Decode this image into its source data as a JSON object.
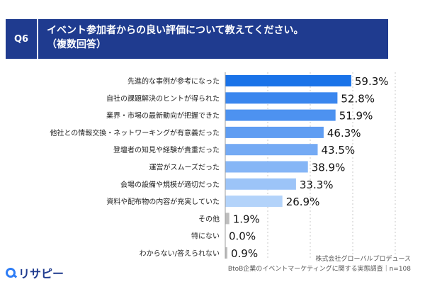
{
  "header": {
    "question_no": "Q6",
    "line1": "イベント参加者からの良い評価について教えてください。",
    "line2": "（複数回答）"
  },
  "chart_data": {
    "type": "bar",
    "orientation": "horizontal",
    "categories": [
      "先進的な事例が参考になった",
      "自社の課題解決のヒントが得られた",
      "業界・市場の最新動向が把握できた",
      "他社との情報交換・ネットワーキングが有意義だった",
      "登壇者の知見や経験が貴重だった",
      "運営がスムーズだった",
      "会場の設備や規模が適切だった",
      "資料や配布物の内容が充実していた",
      "その他",
      "特にない",
      "わからない/答えられない"
    ],
    "values": [
      59.3,
      52.8,
      51.9,
      46.3,
      43.5,
      38.9,
      33.3,
      26.9,
      1.9,
      0.0,
      0.9
    ],
    "value_labels": [
      "59.3%",
      "52.8%",
      "51.9%",
      "46.3%",
      "43.5%",
      "38.9%",
      "33.3%",
      "26.9%",
      "1.9%",
      "0.0%",
      "0.9%"
    ],
    "colors": [
      "#1a73e8",
      "#3a86ee",
      "#4d92f0",
      "#5f9df2",
      "#74aaf4",
      "#86b6f6",
      "#9cc4f8",
      "#b3d3fa",
      "#bdbdbd",
      "#bdbdbd",
      "#bdbdbd"
    ],
    "xlim": [
      0,
      100
    ],
    "grid": true,
    "title": "",
    "xlabel": "",
    "ylabel": ""
  },
  "footer": {
    "source_line1": "株式会社グローバルプロデュース",
    "source_line2": "BtoB企業のイベントマーケティングに関する実態調査｜n=108"
  },
  "logo": {
    "text": "リサピー"
  }
}
